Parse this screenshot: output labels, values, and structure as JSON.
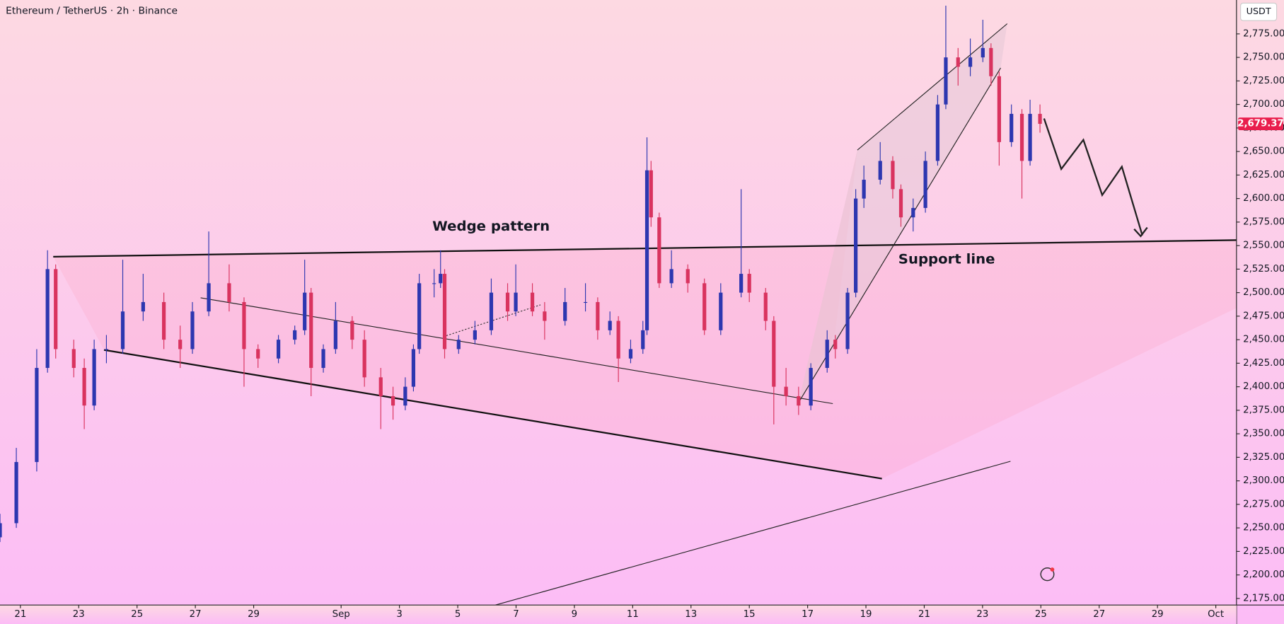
{
  "chart_data": {
    "type": "candlestick",
    "title": "Ethereum / TetherUS · 2h · Binance",
    "currency": "USDT",
    "annotations": [
      "Wedge pattern",
      "Support line"
    ],
    "colors": {
      "up": "#2d37b0",
      "down": "#d9335f"
    },
    "grid": false,
    "xlim": [
      -0.7,
      41.71
    ],
    "ylim": [
      2168,
      2811
    ],
    "xticks": [
      {
        "value": 0,
        "label": "21"
      },
      {
        "value": 2,
        "label": "23"
      },
      {
        "value": 4,
        "label": "25"
      },
      {
        "value": 6,
        "label": "27"
      },
      {
        "value": 8,
        "label": "29"
      },
      {
        "value": 11,
        "label": "Sep"
      },
      {
        "value": 13,
        "label": "3"
      },
      {
        "value": 15,
        "label": "5"
      },
      {
        "value": 17,
        "label": "7"
      },
      {
        "value": 19,
        "label": "9"
      },
      {
        "value": 21,
        "label": "11"
      },
      {
        "value": 23,
        "label": "13"
      },
      {
        "value": 25,
        "label": "15"
      },
      {
        "value": 27,
        "label": "17"
      },
      {
        "value": 29,
        "label": "19"
      },
      {
        "value": 31,
        "label": "21"
      },
      {
        "value": 33,
        "label": "23"
      },
      {
        "value": 35,
        "label": "25"
      },
      {
        "value": 37,
        "label": "27"
      },
      {
        "value": 39,
        "label": "29"
      },
      {
        "value": 41,
        "label": "Oct"
      }
    ],
    "yticks": [
      {
        "value": 2175,
        "label": "2,175.00"
      },
      {
        "value": 2200,
        "label": "2,200.00"
      },
      {
        "value": 2225,
        "label": "2,225.00"
      },
      {
        "value": 2250,
        "label": "2,250.00"
      },
      {
        "value": 2275,
        "label": "2,275.00"
      },
      {
        "value": 2300,
        "label": "2,300.00"
      },
      {
        "value": 2325,
        "label": "2,325.00"
      },
      {
        "value": 2350,
        "label": "2,350.00"
      },
      {
        "value": 2375,
        "label": "2,375.00"
      },
      {
        "value": 2400,
        "label": "2,400.00"
      },
      {
        "value": 2425,
        "label": "2,425.00"
      },
      {
        "value": 2450,
        "label": "2,450.00"
      },
      {
        "value": 2475,
        "label": "2,475.00"
      },
      {
        "value": 2500,
        "label": "2,500.00"
      },
      {
        "value": 2525,
        "label": "2,525.00"
      },
      {
        "value": 2550,
        "label": "2,550.00"
      },
      {
        "value": 2575,
        "label": "2,575.00"
      },
      {
        "value": 2600,
        "label": "2,600.00"
      },
      {
        "value": 2625,
        "label": "2,625.00"
      },
      {
        "value": 2650,
        "label": "2,650.00"
      },
      {
        "value": 2675,
        "label": "2,675.00"
      },
      {
        "value": 2700,
        "label": "2,700.00"
      },
      {
        "value": 2725,
        "label": "2,725.00"
      },
      {
        "value": 2750,
        "label": "2,750.00"
      },
      {
        "value": 2775,
        "label": "2,775.00"
      }
    ],
    "last_price": {
      "value": 2679.37,
      "label": "2,679.37"
    },
    "x": [
      -0.7,
      -0.14,
      0.56,
      0.93,
      1.21,
      1.83,
      2.19,
      2.53,
      2.95,
      3.51,
      4.21,
      4.92,
      5.48,
      5.9,
      6.46,
      7.16,
      7.67,
      8.15,
      8.85,
      9.41,
      9.75,
      9.97,
      10.39,
      10.81,
      11.38,
      11.8,
      12.36,
      12.78,
      13.2,
      13.48,
      13.68,
      14.19,
      14.41,
      14.55,
      15.03,
      15.59,
      16.15,
      16.71,
      16.99,
      17.56,
      17.98,
      18.68,
      19.38,
      19.8,
      20.22,
      20.51,
      20.93,
      21.35,
      21.49,
      21.63,
      21.91,
      22.33,
      22.89,
      23.46,
      24.02,
      24.72,
      25.0,
      25.56,
      25.84,
      26.26,
      26.69,
      27.11,
      27.67,
      27.95,
      28.37,
      28.65,
      28.93,
      29.49,
      29.92,
      30.2,
      30.62,
      31.04,
      31.46,
      31.74,
      32.16,
      32.58,
      33.01,
      33.29,
      33.57,
      33.99,
      34.35,
      34.63,
      34.97
    ],
    "open": [
      2240,
      2255,
      2320,
      2420,
      2525,
      2440,
      2420,
      2380,
      2440,
      2440,
      2480,
      2490,
      2450,
      2440,
      2480,
      2510,
      2490,
      2440,
      2430,
      2450,
      2460,
      2500,
      2420,
      2440,
      2470,
      2450,
      2410,
      2390,
      2380,
      2400,
      2440,
      2510,
      2510,
      2520,
      2440,
      2450,
      2460,
      2500,
      2480,
      2500,
      2480,
      2470,
      2490,
      2490,
      2460,
      2470,
      2430,
      2440,
      2460,
      2630,
      2580,
      2510,
      2525,
      2510,
      2460,
      2500,
      2520,
      2500,
      2470,
      2400,
      2390,
      2380,
      2420,
      2450,
      2440,
      2500,
      2600,
      2620,
      2640,
      2610,
      2580,
      2590,
      2640,
      2700,
      2750,
      2740,
      2750,
      2760,
      2730,
      2660,
      2690,
      2640,
      2690
    ],
    "high": [
      2265,
      2335,
      2440,
      2545,
      2530,
      2450,
      2430,
      2450,
      2455,
      2535,
      2520,
      2500,
      2465,
      2490,
      2565,
      2530,
      2495,
      2445,
      2455,
      2465,
      2535,
      2505,
      2445,
      2490,
      2475,
      2460,
      2420,
      2400,
      2410,
      2445,
      2520,
      2525,
      2545,
      2525,
      2455,
      2470,
      2515,
      2510,
      2530,
      2510,
      2490,
      2505,
      2510,
      2495,
      2480,
      2475,
      2450,
      2470,
      2665,
      2640,
      2585,
      2545,
      2530,
      2515,
      2510,
      2610,
      2525,
      2505,
      2475,
      2420,
      2400,
      2425,
      2460,
      2455,
      2505,
      2610,
      2635,
      2660,
      2645,
      2615,
      2600,
      2650,
      2710,
      2805,
      2760,
      2770,
      2790,
      2765,
      2735,
      2700,
      2695,
      2705,
      2700
    ],
    "low": [
      2235,
      2250,
      2310,
      2415,
      2430,
      2410,
      2355,
      2375,
      2425,
      2435,
      2470,
      2440,
      2420,
      2435,
      2475,
      2480,
      2400,
      2420,
      2425,
      2445,
      2455,
      2390,
      2415,
      2435,
      2440,
      2400,
      2355,
      2365,
      2375,
      2395,
      2435,
      2495,
      2505,
      2430,
      2435,
      2445,
      2455,
      2470,
      2475,
      2475,
      2450,
      2465,
      2480,
      2450,
      2455,
      2405,
      2425,
      2435,
      2455,
      2570,
      2505,
      2505,
      2500,
      2455,
      2455,
      2495,
      2490,
      2460,
      2360,
      2380,
      2370,
      2375,
      2415,
      2430,
      2435,
      2495,
      2590,
      2615,
      2600,
      2570,
      2565,
      2585,
      2635,
      2695,
      2720,
      2730,
      2745,
      2720,
      2635,
      2655,
      2600,
      2635,
      2670
    ],
    "close": [
      2255,
      2320,
      2420,
      2525,
      2440,
      2420,
      2380,
      2440,
      2440,
      2480,
      2490,
      2450,
      2440,
      2480,
      2510,
      2490,
      2440,
      2430,
      2450,
      2460,
      2500,
      2420,
      2440,
      2470,
      2450,
      2410,
      2390,
      2380,
      2400,
      2440,
      2510,
      2510,
      2520,
      2440,
      2450,
      2460,
      2500,
      2480,
      2500,
      2480,
      2470,
      2490,
      2490,
      2460,
      2470,
      2430,
      2440,
      2460,
      2630,
      2580,
      2510,
      2525,
      2510,
      2460,
      2500,
      2520,
      2500,
      2470,
      2400,
      2390,
      2380,
      2420,
      2450,
      2440,
      2500,
      2600,
      2620,
      2640,
      2610,
      2580,
      2590,
      2640,
      2700,
      2750,
      2740,
      2750,
      2760,
      2730,
      2660,
      2690,
      2640,
      2690,
      2679.37
    ]
  }
}
